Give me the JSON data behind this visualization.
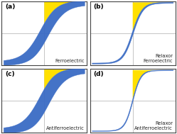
{
  "panel_labels": [
    "(a)",
    "(b)",
    "(c)",
    "(d)"
  ],
  "panel_titles": [
    "Ferroelectric",
    "Relaxor\nFerroelectric",
    "Antiferroelectric",
    "Relaxor\nAntiferroelectric"
  ],
  "blue": "#3A6BC4",
  "yellow": "#FFE000",
  "grid_color": "#BBBBBB",
  "border_color": "#555555",
  "figsize": [
    2.49,
    1.89
  ],
  "dpi": 100
}
